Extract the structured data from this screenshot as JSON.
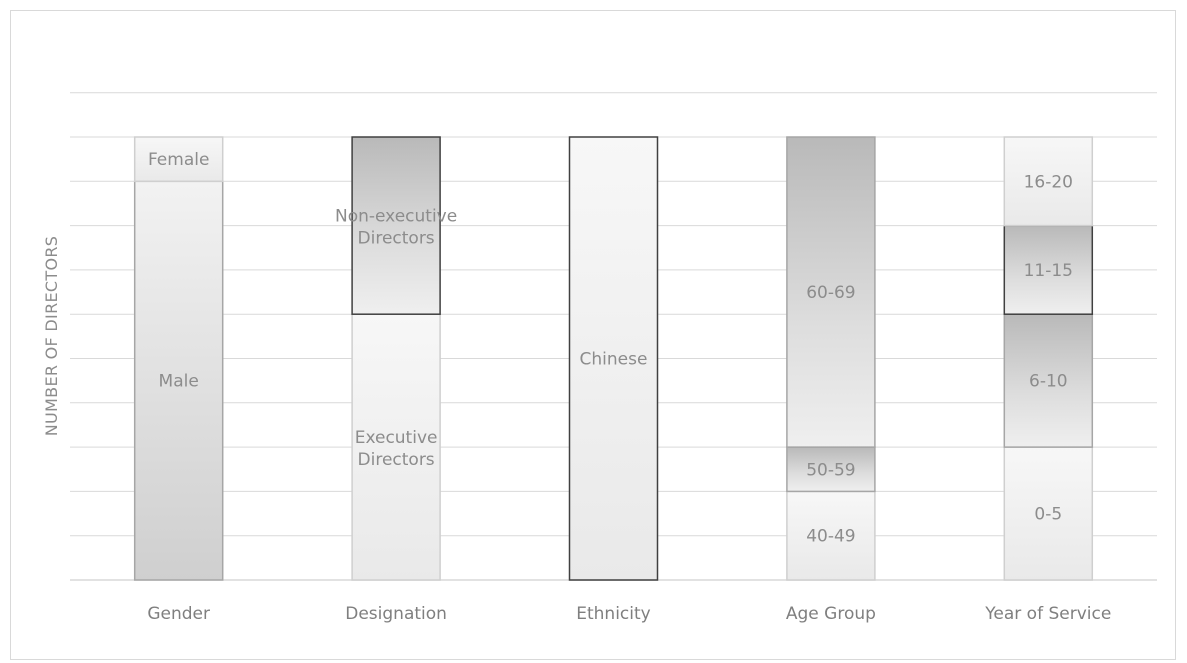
{
  "chart_data": {
    "type": "bar",
    "stacked": true,
    "title": "",
    "xlabel": "",
    "ylabel": "NUMBER OF DIRECTORS",
    "ylim": [
      0,
      10
    ],
    "grid": true,
    "legend": "none",
    "categories": [
      "Gender",
      "Designation",
      "Ethnicity",
      "Age Group",
      "Year of Service"
    ],
    "stacks": [
      {
        "category": "Gender",
        "segments": [
          {
            "label": "Male",
            "value": 9
          },
          {
            "label": "Female",
            "value": 1
          }
        ]
      },
      {
        "category": "Designation",
        "segments": [
          {
            "label": "Executive Directors",
            "value": 6
          },
          {
            "label": "Non-executive Directors",
            "value": 4
          }
        ]
      },
      {
        "category": "Ethnicity",
        "segments": [
          {
            "label": "Chinese",
            "value": 10
          }
        ]
      },
      {
        "category": "Age Group",
        "segments": [
          {
            "label": "40-49",
            "value": 2
          },
          {
            "label": "50-59",
            "value": 1
          },
          {
            "label": "60-69",
            "value": 7
          }
        ]
      },
      {
        "category": "Year of Service",
        "segments": [
          {
            "label": "0-5",
            "value": 3
          },
          {
            "label": "6-10",
            "value": 3
          },
          {
            "label": "11-15",
            "value": 2
          },
          {
            "label": "16-20",
            "value": 2
          }
        ]
      }
    ],
    "colors": {
      "light_fill": "#f2f2f2",
      "dark_fill": "#d4d4d4",
      "border_dark": "#404040",
      "border_light": "#cfcfcf",
      "gridline": "#d9d9d9",
      "text": "#8c8c8c"
    }
  }
}
